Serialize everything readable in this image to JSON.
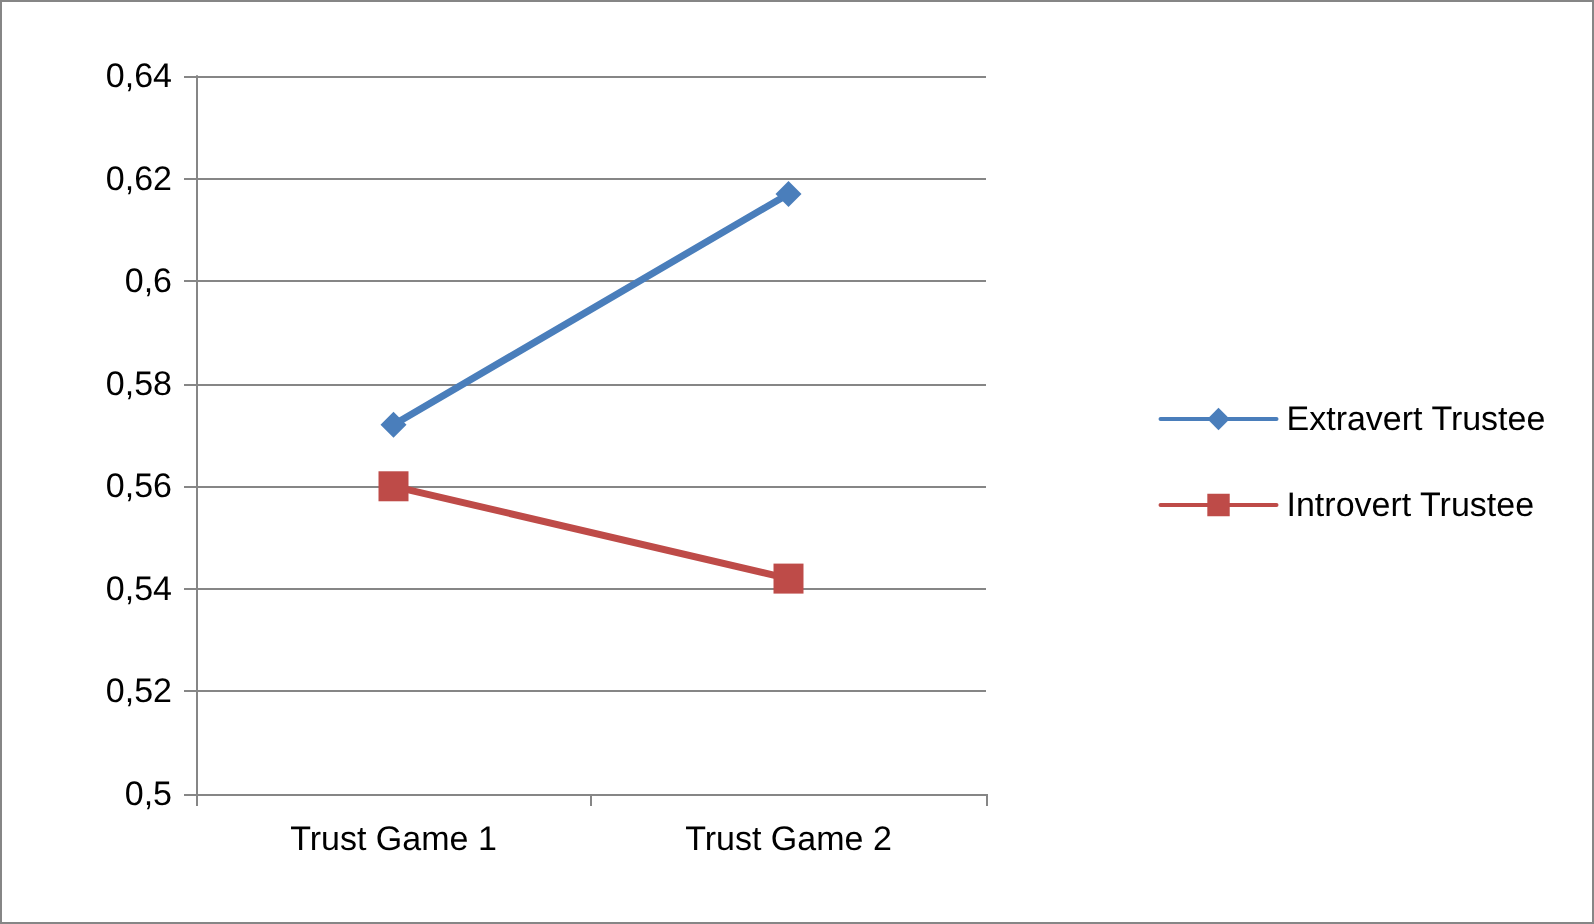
{
  "chart_data": {
    "type": "line",
    "categories": [
      "Trust Game 1",
      "Trust Game 2"
    ],
    "series": [
      {
        "name": "Extravert Trustee",
        "color": "#4a7ebb",
        "values": [
          0.572,
          0.617
        ],
        "marker": "diamond"
      },
      {
        "name": "Introvert Trustee",
        "color": "#be4b48",
        "values": [
          0.56,
          0.542
        ],
        "marker": "square"
      }
    ],
    "ylim": [
      0.5,
      0.64
    ],
    "yticks": [
      {
        "value": 0.5,
        "label": "0,5"
      },
      {
        "value": 0.52,
        "label": "0,52"
      },
      {
        "value": 0.54,
        "label": "0,54"
      },
      {
        "value": 0.56,
        "label": "0,56"
      },
      {
        "value": 0.58,
        "label": "0,58"
      },
      {
        "value": 0.6,
        "label": "0,6"
      },
      {
        "value": 0.62,
        "label": "0,62"
      },
      {
        "value": 0.64,
        "label": "0,64"
      }
    ],
    "grid": "y",
    "legend": "right",
    "line_style": "solid"
  }
}
